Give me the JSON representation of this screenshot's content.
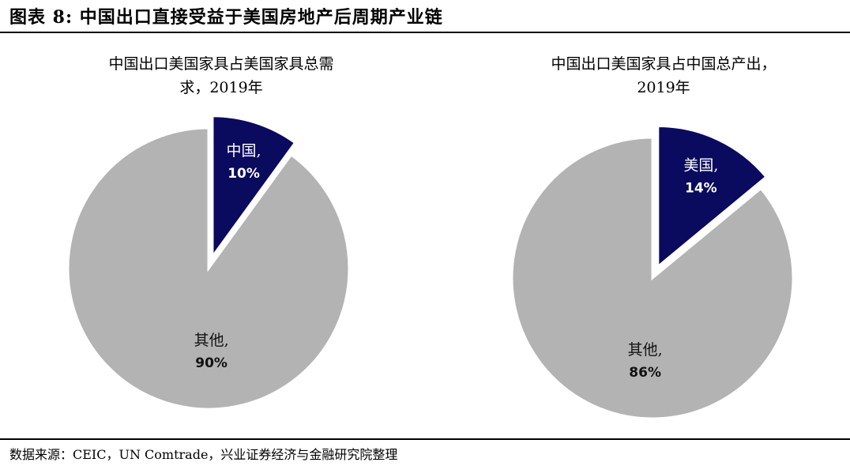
{
  "figure_title": "图表 8:  中国出口直接受益于美国房地产后周期产业链",
  "source": "数据来源：CEIC，UN Comtrade，兴业证券经济与金融研究院整理",
  "colors": {
    "highlight": "#0a0a5e",
    "other": "#b3b3b3",
    "label_dark": "#111111",
    "label_light": "#ffffff"
  },
  "chart_data": [
    {
      "type": "pie",
      "title_line1": "中国出口美国家具占美国家具总需",
      "title_line2": "求，2019年",
      "slices": [
        {
          "name": "中国,",
          "value": 10,
          "label": "10%",
          "exploded": true
        },
        {
          "name": "其他,",
          "value": 90,
          "label": "90%",
          "exploded": false
        }
      ]
    },
    {
      "type": "pie",
      "title_line1": "中国出口美国家具占中国总产出，",
      "title_line2": "2019年",
      "slices": [
        {
          "name": "美国,",
          "value": 14,
          "label": "14%",
          "exploded": true
        },
        {
          "name": "其他,",
          "value": 86,
          "label": "86%",
          "exploded": false
        }
      ]
    }
  ]
}
